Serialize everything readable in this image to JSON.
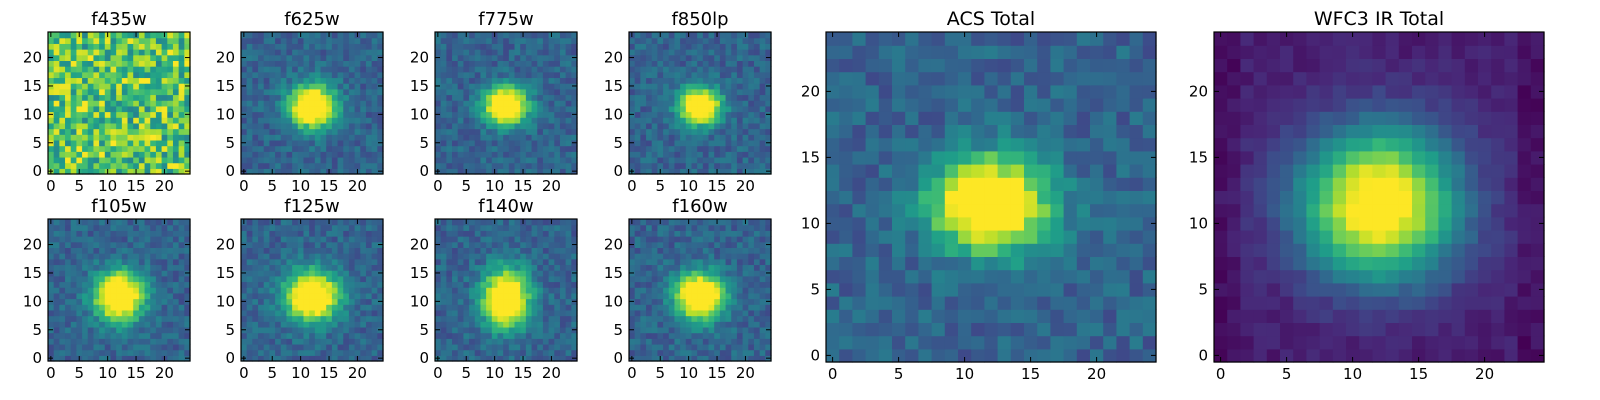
{
  "figure": {
    "colormap": "viridis",
    "colormap_stops": [
      "#440154",
      "#482878",
      "#3e4989",
      "#31688e",
      "#26828e",
      "#1f9e89",
      "#35b779",
      "#6ece58",
      "#b5de2b",
      "#fde725"
    ]
  },
  "chart_data": [
    {
      "type": "heatmap",
      "title": "f435w",
      "xticks": [
        0,
        5,
        10,
        15,
        20
      ],
      "yticks": [
        0,
        5,
        10,
        15,
        20
      ],
      "xlim": [
        0,
        24
      ],
      "ylim": [
        0,
        24
      ],
      "grid": false,
      "pattern": "noise",
      "peak": [
        12,
        11
      ],
      "spread": [
        4,
        4
      ]
    },
    {
      "type": "heatmap",
      "title": "f625w",
      "xticks": [
        0,
        5,
        10,
        15,
        20
      ],
      "yticks": [
        0,
        5,
        10,
        15,
        20
      ],
      "xlim": [
        0,
        24
      ],
      "ylim": [
        0,
        24
      ],
      "grid": false,
      "pattern": "source",
      "peak": [
        12,
        11.5
      ],
      "spread": [
        2.8,
        2.6
      ]
    },
    {
      "type": "heatmap",
      "title": "f775w",
      "xticks": [
        0,
        5,
        10,
        15,
        20
      ],
      "yticks": [
        0,
        5,
        10,
        15,
        20
      ],
      "xlim": [
        0,
        24
      ],
      "ylim": [
        0,
        24
      ],
      "grid": false,
      "pattern": "source",
      "peak": [
        12,
        11.5
      ],
      "spread": [
        2.6,
        2.3
      ]
    },
    {
      "type": "heatmap",
      "title": "f850lp",
      "xticks": [
        0,
        5,
        10,
        15,
        20
      ],
      "yticks": [
        0,
        5,
        10,
        15,
        20
      ],
      "xlim": [
        0,
        24
      ],
      "ylim": [
        0,
        24
      ],
      "grid": false,
      "pattern": "source",
      "peak": [
        12,
        11.5
      ],
      "spread": [
        2.5,
        2.2
      ]
    },
    {
      "type": "heatmap",
      "title": "f105w",
      "xticks": [
        0,
        5,
        10,
        15,
        20
      ],
      "yticks": [
        0,
        5,
        10,
        15,
        20
      ],
      "xlim": [
        0,
        24
      ],
      "ylim": [
        0,
        24
      ],
      "grid": false,
      "pattern": "source",
      "peak": [
        12,
        11
      ],
      "spread": [
        3,
        3
      ]
    },
    {
      "type": "heatmap",
      "title": "f125w",
      "xticks": [
        0,
        5,
        10,
        15,
        20
      ],
      "yticks": [
        0,
        5,
        10,
        15,
        20
      ],
      "xlim": [
        0,
        24
      ],
      "ylim": [
        0,
        24
      ],
      "grid": false,
      "pattern": "source",
      "peak": [
        12,
        11
      ],
      "spread": [
        3.2,
        3
      ]
    },
    {
      "type": "heatmap",
      "title": "f140w",
      "xticks": [
        0,
        5,
        10,
        15,
        20
      ],
      "yticks": [
        0,
        5,
        10,
        15,
        20
      ],
      "xlim": [
        0,
        24
      ],
      "ylim": [
        0,
        24
      ],
      "grid": false,
      "pattern": "source",
      "peak": [
        12,
        10.5
      ],
      "spread": [
        2.8,
        3.5
      ]
    },
    {
      "type": "heatmap",
      "title": "f160w",
      "xticks": [
        0,
        5,
        10,
        15,
        20
      ],
      "yticks": [
        0,
        5,
        10,
        15,
        20
      ],
      "xlim": [
        0,
        24
      ],
      "ylim": [
        0,
        24
      ],
      "grid": false,
      "pattern": "source",
      "peak": [
        12,
        11
      ],
      "spread": [
        3,
        2.8
      ]
    },
    {
      "type": "heatmap",
      "title": "ACS Total",
      "xticks": [
        0,
        5,
        10,
        15,
        20
      ],
      "yticks": [
        0,
        5,
        10,
        15,
        20
      ],
      "xlim": [
        0,
        24
      ],
      "ylim": [
        0,
        24
      ],
      "grid": false,
      "pattern": "source",
      "peak": [
        12,
        11.5
      ],
      "spread": [
        3,
        2.4
      ]
    },
    {
      "type": "heatmap",
      "title": "WFC3 IR Total",
      "xticks": [
        0,
        5,
        10,
        15,
        20
      ],
      "yticks": [
        0,
        5,
        10,
        15,
        20
      ],
      "xlim": [
        0,
        24
      ],
      "ylim": [
        0,
        24
      ],
      "grid": false,
      "pattern": "source",
      "peak": [
        12,
        11.5
      ],
      "spread": [
        4.2,
        4
      ]
    }
  ]
}
